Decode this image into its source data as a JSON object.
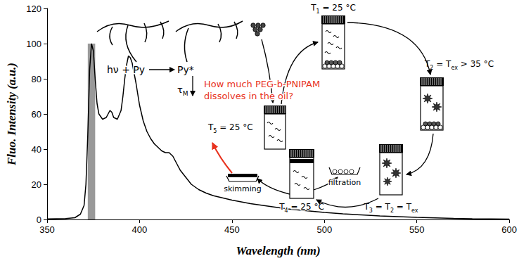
{
  "chart_data": {
    "type": "line",
    "color": "#000000",
    "xlabel": "Wavelength (nm)",
    "ylabel": "Fluo. Intensity (a.u.)",
    "x": [
      350,
      360,
      365,
      368,
      370,
      371,
      372,
      373,
      374,
      375,
      376,
      377,
      378,
      380,
      382,
      383,
      384,
      385,
      386,
      388,
      390,
      391,
      392,
      393,
      394,
      395,
      396,
      398,
      400,
      402,
      404,
      406,
      408,
      410,
      412,
      414,
      416,
      418,
      420,
      422,
      425,
      428,
      432,
      436,
      440,
      450,
      460,
      470,
      480,
      490,
      500,
      510,
      520,
      530,
      540,
      550,
      560,
      570,
      580,
      590,
      600
    ],
    "values": [
      0.3,
      0.5,
      1,
      3,
      8,
      20,
      48,
      85,
      100,
      96,
      80,
      66,
      60,
      57,
      58,
      60,
      62,
      61,
      58,
      57,
      62,
      70,
      80,
      88,
      93,
      92,
      89,
      78,
      65,
      56,
      50,
      46,
      43,
      41,
      39,
      38,
      38,
      36,
      32,
      28,
      24,
      20,
      17,
      15,
      13.5,
      11,
      9,
      7.5,
      6,
      5,
      4,
      3.2,
      2.6,
      2,
      1.6,
      1.2,
      0.9,
      0.6,
      0.4,
      0.3,
      0.2
    ],
    "xlim": [
      350,
      600
    ],
    "xticks": [
      350,
      400,
      450,
      500,
      550,
      600
    ],
    "ylim": [
      0,
      120
    ],
    "yticks": [
      0,
      20,
      40,
      60,
      80,
      100,
      120
    ],
    "grid": false,
    "shaded_band": {
      "x": [
        372,
        376
      ],
      "y": [
        0,
        100
      ],
      "color": "#999999"
    }
  },
  "diagram": {
    "excitation": "hν + Py",
    "excited": "Py*",
    "lifetime": [
      "τ",
      {
        "sub": "M"
      }
    ],
    "t1": [
      "T",
      {
        "sub": "1"
      },
      " = 25 °C"
    ],
    "t2": [
      "T",
      {
        "sub": "2"
      },
      " = T",
      {
        "sub": "ex"
      },
      " > 35 °C"
    ],
    "t3": [
      "T",
      {
        "sub": "3"
      },
      " = T",
      {
        "sub": "2"
      },
      " = T",
      {
        "sub": "ex"
      }
    ],
    "t4": [
      "T",
      {
        "sub": "4"
      },
      " = 25 °C"
    ],
    "t5": [
      "T",
      {
        "sub": "5"
      },
      " = 25 °C"
    ],
    "skimming": "skimming",
    "filtration": "filtration",
    "question": {
      "text": "How much PEG-b-PNIPAM dissolves in the oil?",
      "color": "#e8321e"
    }
  }
}
